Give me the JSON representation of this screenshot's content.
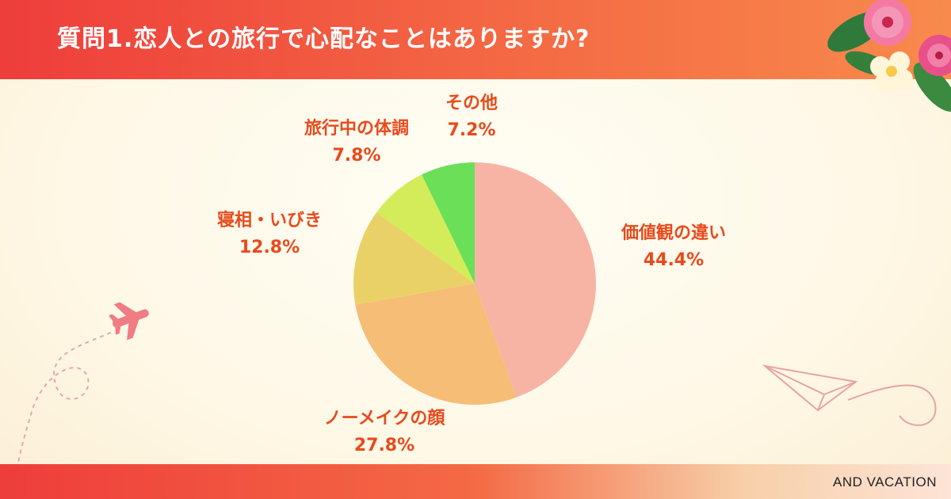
{
  "title": "質問1.恋人との旅行で心配なことはありますか?",
  "brand": "AND VACATION",
  "chart_data": {
    "type": "pie",
    "title": "質問1.恋人との旅行で心配なことはありますか?",
    "start_angle_deg": 0,
    "direction": "clockwise",
    "slices": [
      {
        "label": "価値観の違い",
        "value": 44.4,
        "pct_label": "44.4%",
        "color": "#f7b4a4"
      },
      {
        "label": "ノーメイクの顔",
        "value": 27.8,
        "pct_label": "27.8%",
        "color": "#f5bd76"
      },
      {
        "label": "寝相・いびき",
        "value": 12.8,
        "pct_label": "12.8%",
        "color": "#ead167"
      },
      {
        "label": "旅行中の体調",
        "value": 7.8,
        "pct_label": "7.8%",
        "color": "#d5ec5a"
      },
      {
        "label": "その他",
        "value": 7.2,
        "pct_label": "7.2%",
        "color": "#6bdf58"
      }
    ],
    "label_color": "#e84a1c"
  },
  "decor": {
    "icons": [
      "hibiscus-flower-icon",
      "airplane-icon",
      "paper-plane-icon"
    ]
  }
}
